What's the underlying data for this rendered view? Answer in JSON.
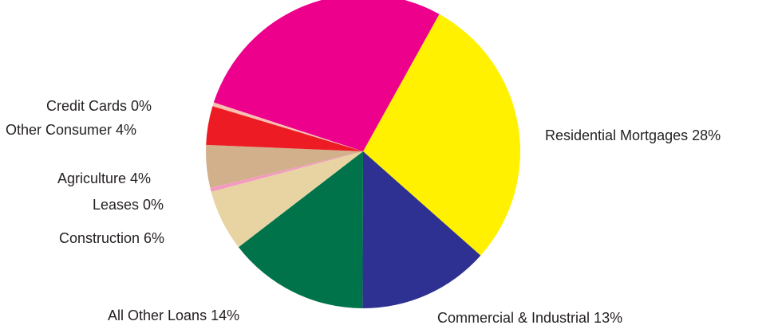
{
  "chart_data": {
    "type": "pie",
    "title": "",
    "legend": "none",
    "slices": [
      {
        "label": "Residential Mortgages 28%",
        "value": 28.5,
        "color": "#fff100"
      },
      {
        "label": "Commercial & Industrial 13%",
        "value": 13.5,
        "color": "#2e3192"
      },
      {
        "label": "All Other Loans 14%",
        "value": 14.5,
        "color": "#00734a"
      },
      {
        "label": "Construction 6%",
        "value": 6.3,
        "color": "#e8d4a2"
      },
      {
        "label": "Leases 0%",
        "value": 0.4,
        "color": "#f49ac1"
      },
      {
        "label": "Agriculture 4%",
        "value": 4.4,
        "color": "#d2b08c"
      },
      {
        "label": "Other Consumer 4%",
        "value": 4.0,
        "color": "#ed1c24"
      },
      {
        "label": "Credit Cards 0%",
        "value": 0.4,
        "color": "#f9c0b0"
      },
      {
        "label": "",
        "value": 28.0,
        "color": "#ec008c"
      }
    ]
  }
}
